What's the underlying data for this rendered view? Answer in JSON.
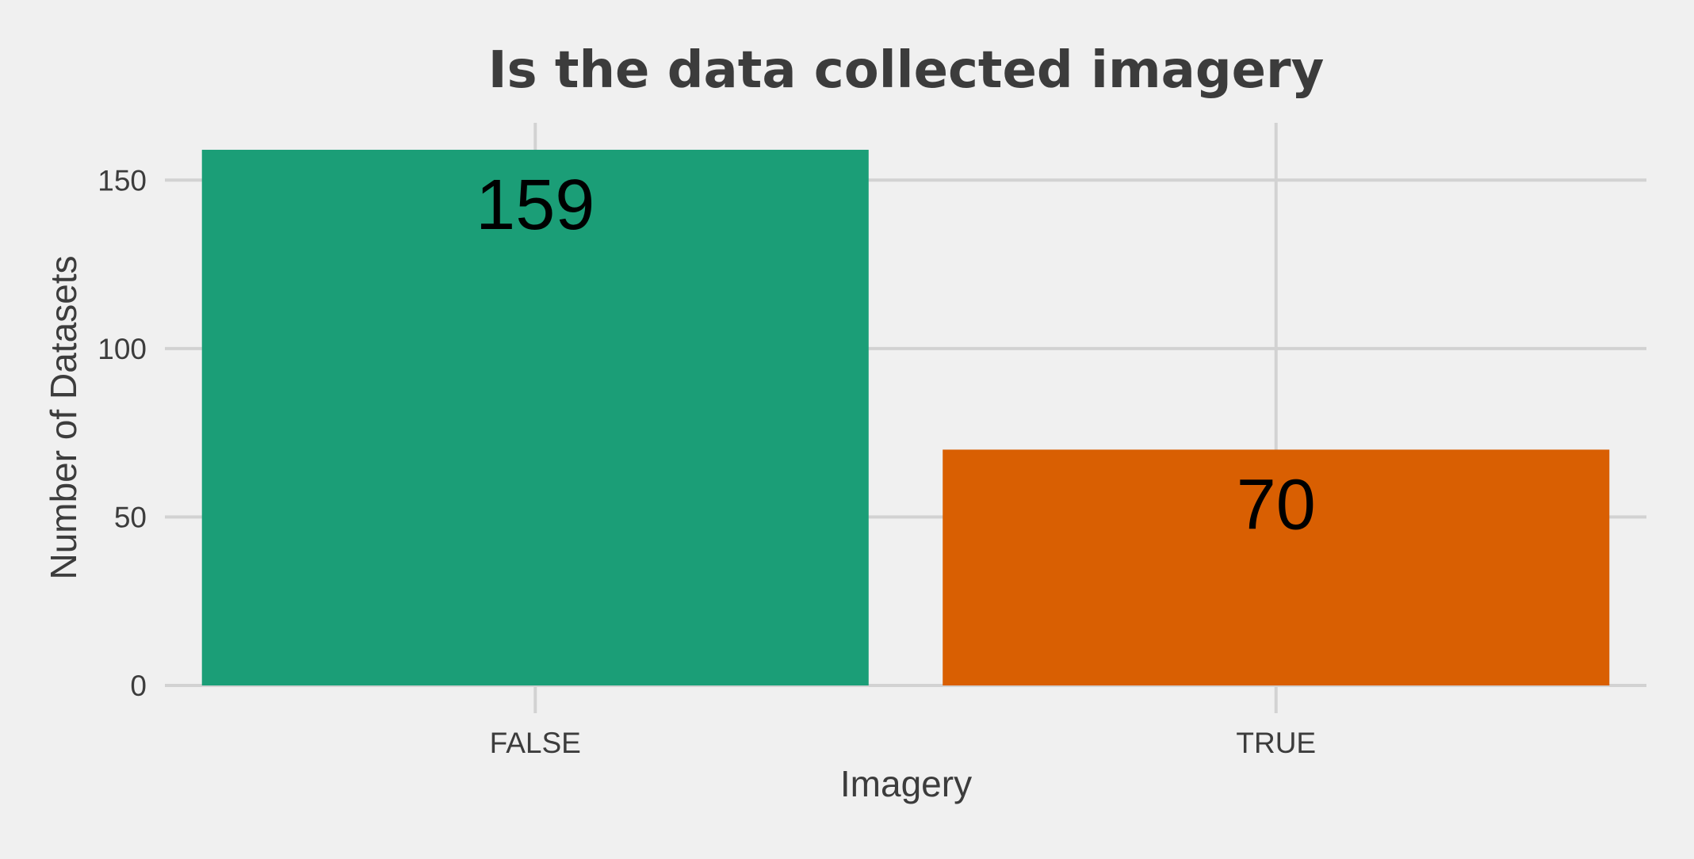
{
  "chart_data": {
    "type": "bar",
    "title": "Is the data collected imagery",
    "xlabel": "Imagery",
    "ylabel": "Number of Datasets",
    "categories": [
      "FALSE",
      "TRUE"
    ],
    "values": [
      159,
      70
    ],
    "data_labels": [
      "159",
      "70"
    ],
    "colors": [
      "#1b9e77",
      "#d95f02"
    ],
    "ylim": [
      0,
      167
    ],
    "yticks": [
      0,
      50,
      100,
      150
    ],
    "ytick_labels": [
      "0",
      "50",
      "100",
      "150"
    ],
    "grid": true,
    "legend": "none"
  },
  "style": {
    "background": "#f0f0f0",
    "grid_color": "#d2d2d2",
    "text_color": "#3c3c3c"
  }
}
